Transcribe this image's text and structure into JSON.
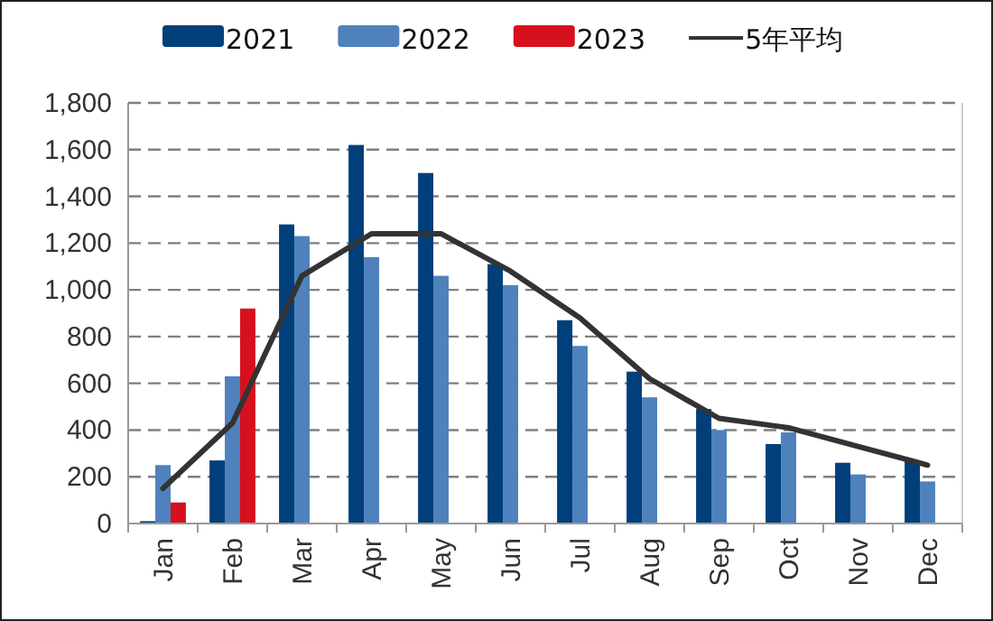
{
  "chart_data": {
    "type": "bar",
    "categories": [
      "Jan",
      "Feb",
      "Mar",
      "Apr",
      "May",
      "Jun",
      "Jul",
      "Aug",
      "Sep",
      "Oct",
      "Nov",
      "Dec"
    ],
    "series": [
      {
        "name": "2021",
        "color": "#003f7a",
        "values": [
          10,
          270,
          1280,
          1620,
          1500,
          1110,
          870,
          650,
          490,
          340,
          260,
          270
        ]
      },
      {
        "name": "2022",
        "color": "#4f81bd",
        "values": [
          250,
          630,
          1230,
          1140,
          1060,
          1020,
          760,
          540,
          400,
          390,
          210,
          180
        ]
      },
      {
        "name": "2023",
        "color": "#d7101e",
        "values": [
          90,
          920,
          null,
          null,
          null,
          null,
          null,
          null,
          null,
          null,
          null,
          null
        ]
      },
      {
        "name": "5年平均",
        "type": "line",
        "color": "#333333",
        "line_style": "solid",
        "values": [
          150,
          430,
          1060,
          1240,
          1240,
          1080,
          880,
          620,
          450,
          410,
          330,
          250
        ]
      }
    ],
    "ylim": [
      0,
      1800
    ],
    "yticks": [
      {
        "value": 0,
        "label": "0"
      },
      {
        "value": 200,
        "label": "200"
      },
      {
        "value": 400,
        "label": "400"
      },
      {
        "value": 600,
        "label": "600"
      },
      {
        "value": 800,
        "label": "800"
      },
      {
        "value": 1000,
        "label": "1,000"
      },
      {
        "value": 1200,
        "label": "1,200"
      },
      {
        "value": 1400,
        "label": "1,400"
      },
      {
        "value": 1600,
        "label": "1,600"
      },
      {
        "value": 1800,
        "label": "1,800"
      }
    ],
    "grid": "y",
    "legend": "top",
    "marker": "none"
  }
}
